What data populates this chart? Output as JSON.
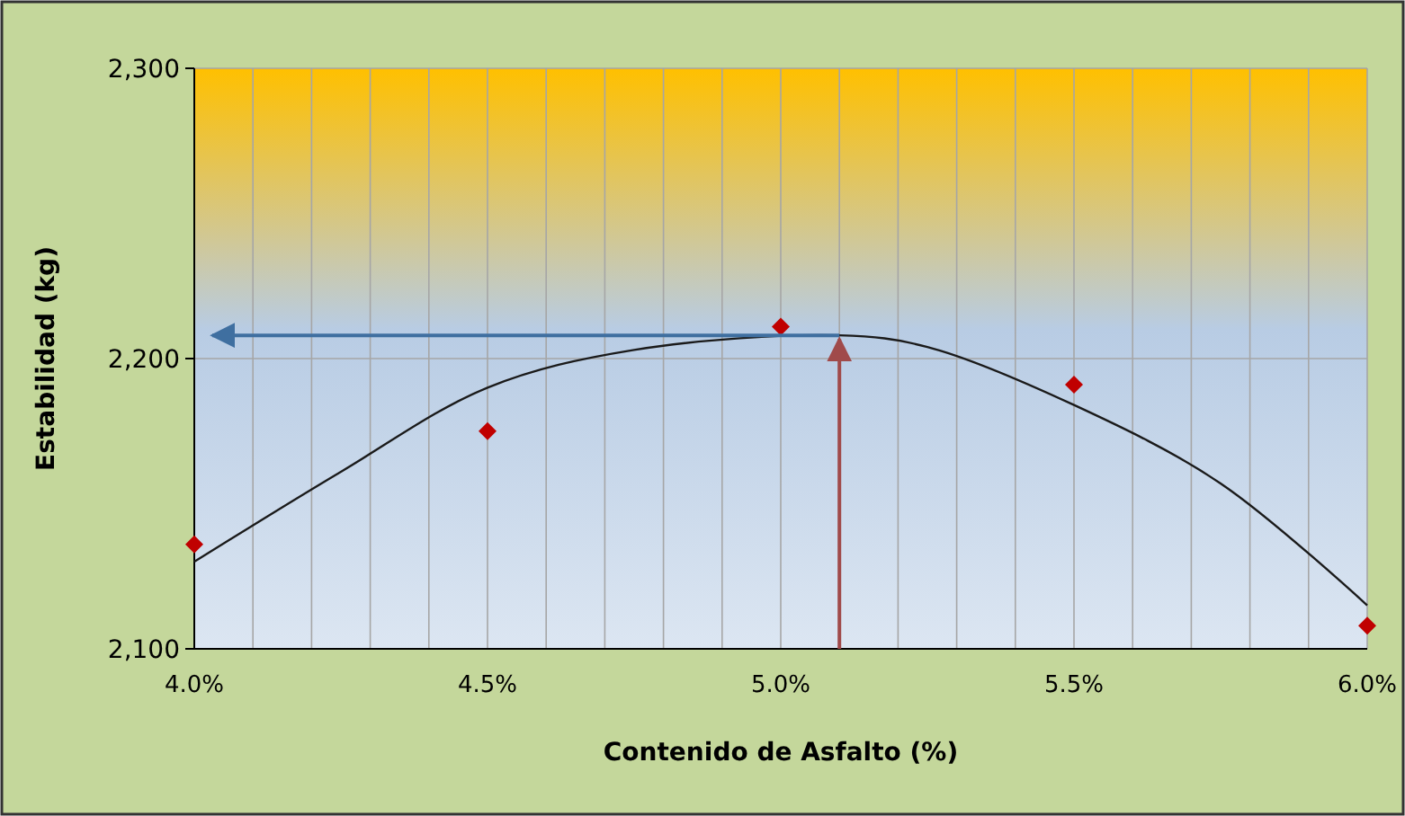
{
  "chart_data": {
    "type": "scatter",
    "xlabel": "Contenido de Asfalto (%)",
    "ylabel": "Estabilidad (kg)",
    "xlim": [
      4.0,
      6.0
    ],
    "ylim": [
      2100,
      2300
    ],
    "xticks": [
      {
        "value": 4.0,
        "label": "4.0%"
      },
      {
        "value": 4.1,
        "label": null
      },
      {
        "value": 4.2,
        "label": null
      },
      {
        "value": 4.3,
        "label": null
      },
      {
        "value": 4.4,
        "label": null
      },
      {
        "value": 4.5,
        "label": "4.5%"
      },
      {
        "value": 4.6,
        "label": null
      },
      {
        "value": 4.7,
        "label": null
      },
      {
        "value": 4.8,
        "label": null
      },
      {
        "value": 4.9,
        "label": null
      },
      {
        "value": 5.0,
        "label": "5.0%"
      },
      {
        "value": 5.1,
        "label": null
      },
      {
        "value": 5.2,
        "label": null
      },
      {
        "value": 5.3,
        "label": null
      },
      {
        "value": 5.4,
        "label": null
      },
      {
        "value": 5.5,
        "label": "5.5%"
      },
      {
        "value": 5.6,
        "label": null
      },
      {
        "value": 5.7,
        "label": null
      },
      {
        "value": 5.8,
        "label": null
      },
      {
        "value": 5.9,
        "label": null
      },
      {
        "value": 6.0,
        "label": "6.0%"
      }
    ],
    "yticks": [
      {
        "value": 2100,
        "label": "2,100"
      },
      {
        "value": 2200,
        "label": "2,200"
      },
      {
        "value": 2300,
        "label": "2,300"
      }
    ],
    "grid": true,
    "series": [
      {
        "color": "#c00000",
        "marker": "diamond",
        "x": [
          4.0,
          4.5,
          5.0,
          5.5,
          6.0
        ],
        "values": [
          2136,
          2175,
          2211,
          2191,
          2108
        ]
      },
      {
        "type": "line",
        "color": "#1a1a1a",
        "marker": "none",
        "line_style": "solid",
        "x": [
          4.0,
          4.25,
          4.5,
          4.75,
          5.1,
          5.25,
          5.5,
          5.75,
          6.0
        ],
        "values": [
          2130,
          2161,
          2190,
          2203,
          2208,
          2204,
          2184,
          2157,
          2115
        ]
      }
    ],
    "ref_lines": [
      {
        "axis": "x",
        "value": 5.1,
        "color": "#a04a4a"
      },
      {
        "axis": "y",
        "value": 2208,
        "color": "#3f6fa0"
      }
    ]
  }
}
